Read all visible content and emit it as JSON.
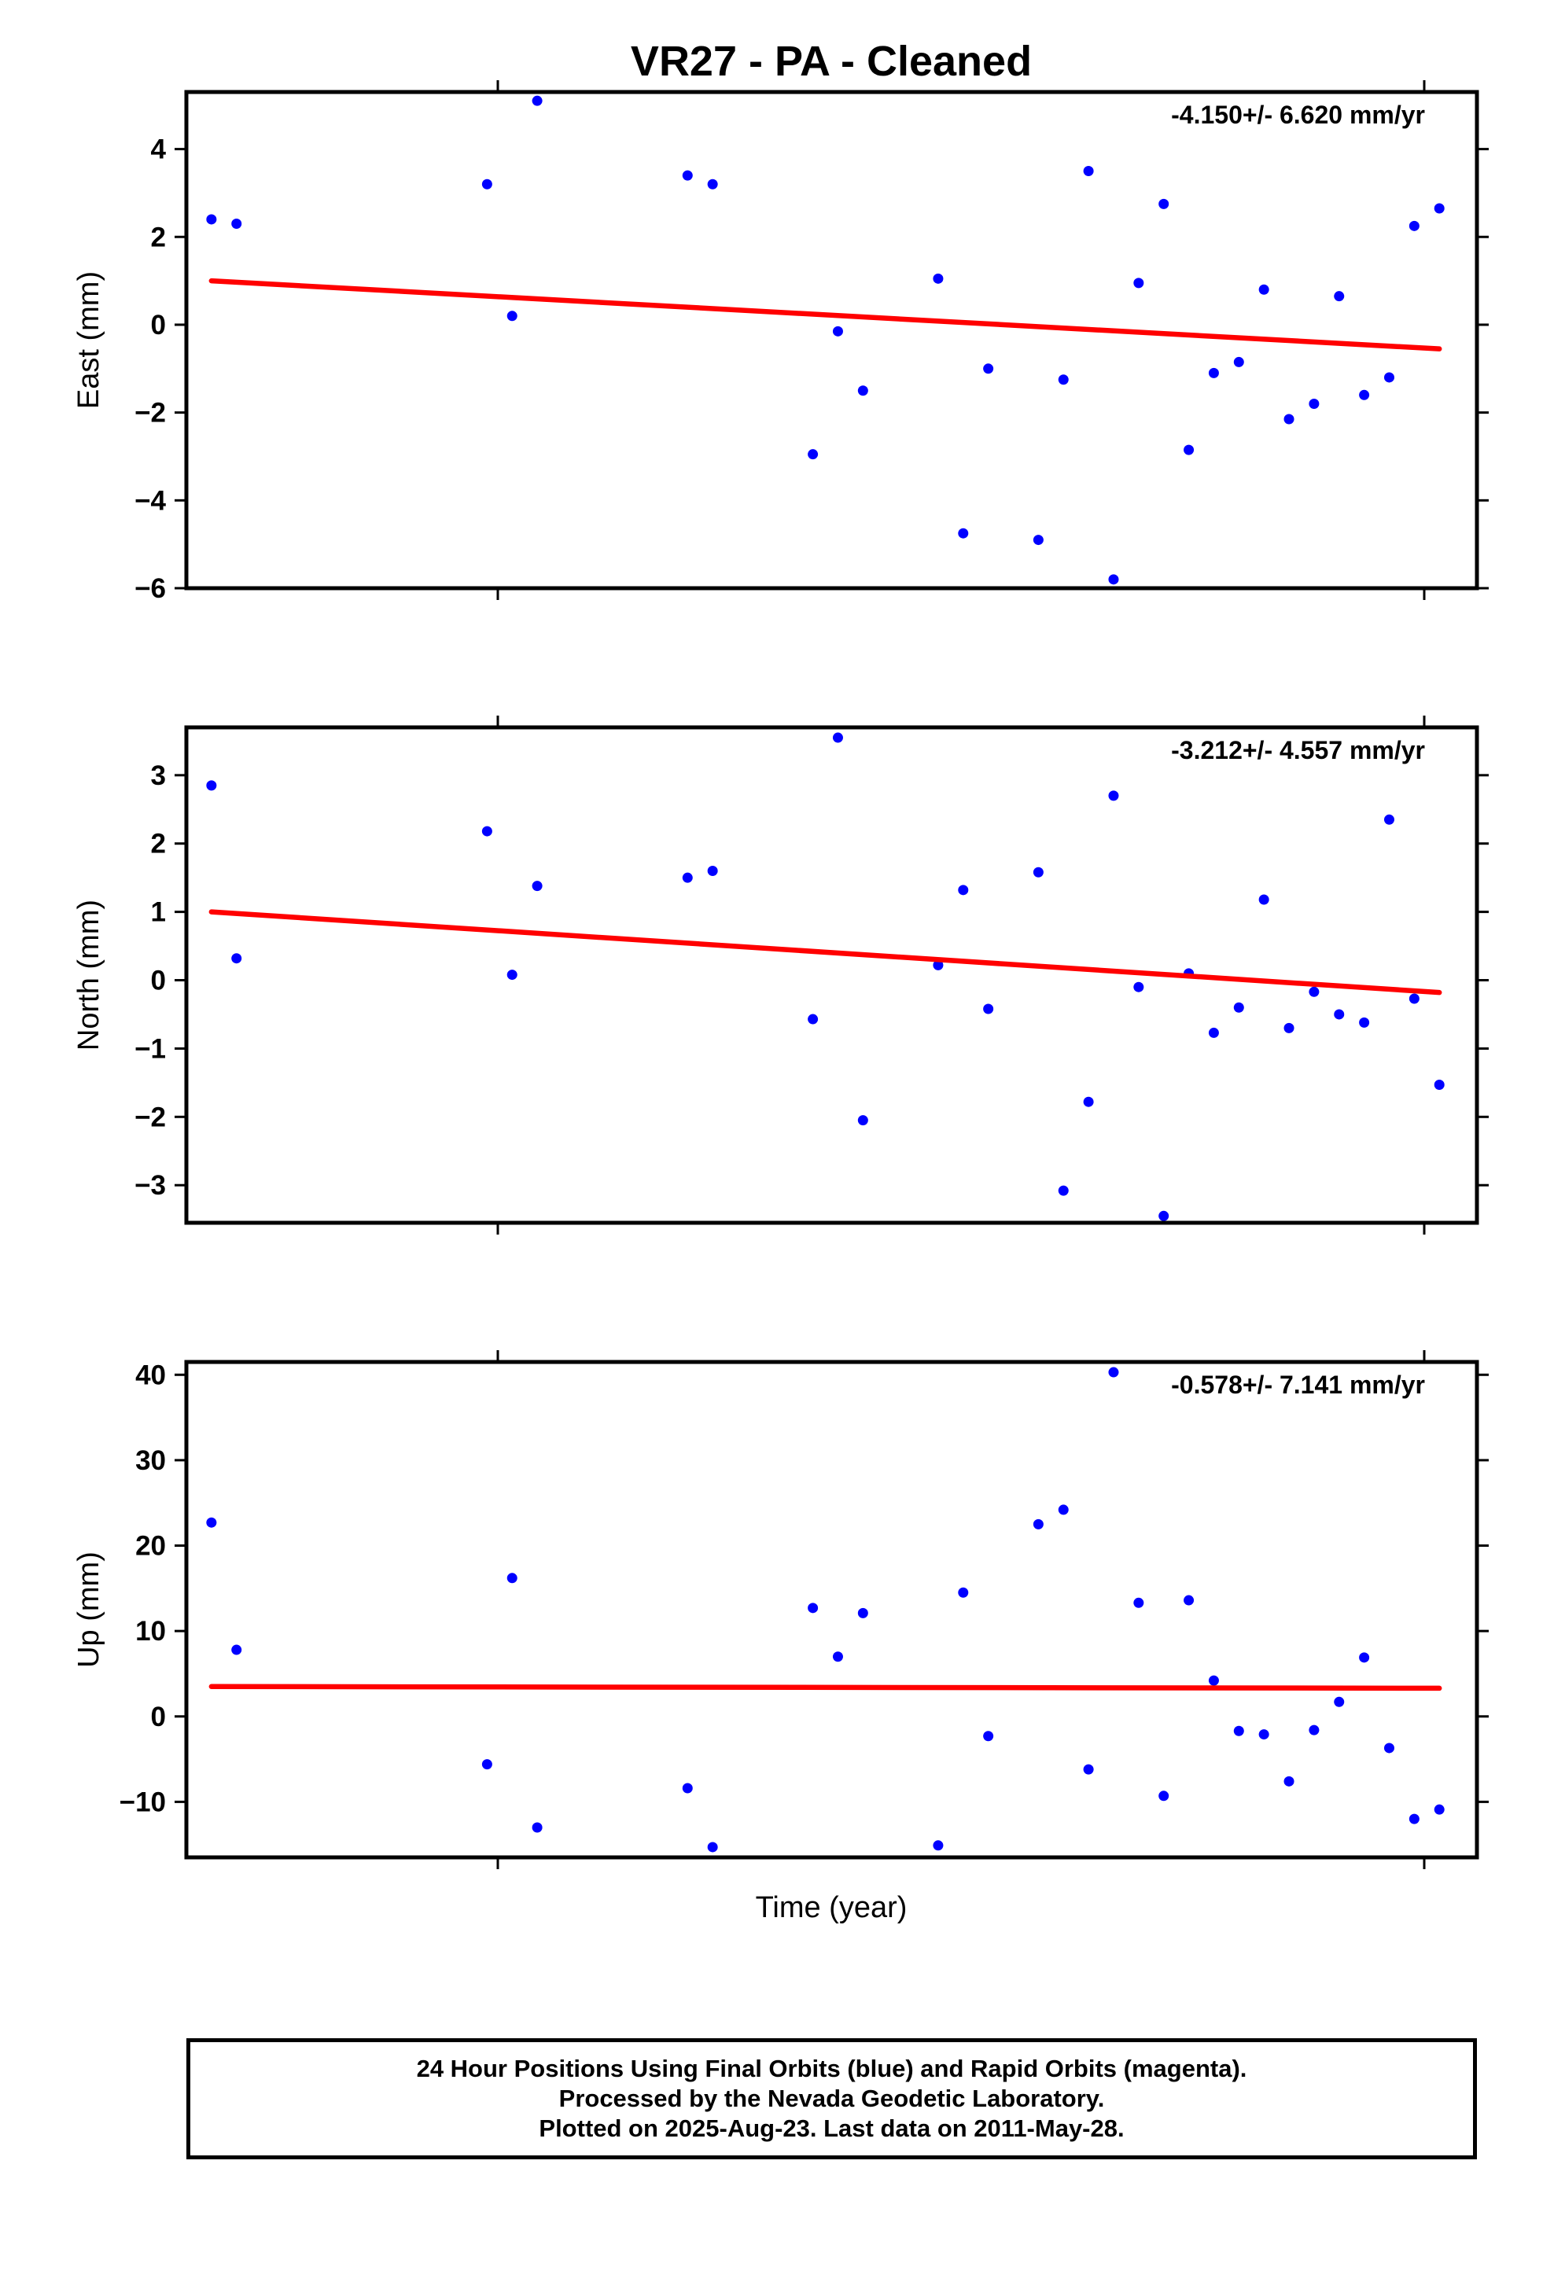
{
  "title": "VR27  - PA - Cleaned",
  "xlabel": "Time (year)",
  "footer": {
    "line1": "24 Hour Positions Using Final Orbits (blue) and Rapid Orbits (magenta).",
    "line2": "Processed by the Nevada Geodetic Laboratory.",
    "line3": "Plotted on 2025-Aug-23. Last data on 2011-May-28."
  },
  "colors": {
    "points": "#0000ff",
    "trend": "#ff0000",
    "frame": "#000000"
  },
  "chart_data": [
    {
      "type": "scatter",
      "ylabel": "East (mm)",
      "rate_label": "-4.150+/- 6.620 mm/yr",
      "ylim": [
        -6,
        5.3
      ],
      "yticks": [
        4,
        2,
        0,
        -2,
        -4,
        -6
      ],
      "ytick_labels": [
        "4",
        "2",
        "0",
        "−2",
        "−4",
        "−6"
      ],
      "x": [
        1,
        2,
        12,
        13,
        14,
        20,
        21,
        25,
        26,
        27,
        30,
        31,
        32,
        34,
        35,
        36,
        37,
        38,
        39,
        40,
        41,
        42,
        43,
        44,
        45,
        46,
        47,
        48,
        49,
        50
      ],
      "y": [
        2.4,
        2.3,
        3.2,
        0.2,
        5.1,
        3.4,
        3.2,
        -2.95,
        -0.15,
        -1.5,
        1.05,
        -4.75,
        -1.0,
        -4.9,
        -1.25,
        3.5,
        -5.8,
        0.95,
        2.75,
        -2.85,
        -1.1,
        -0.85,
        0.8,
        -2.15,
        -1.8,
        0.65,
        -1.6,
        -1.2,
        2.25,
        2.65
      ],
      "trend": {
        "x": [
          1,
          50
        ],
        "y": [
          1.0,
          -0.55
        ]
      }
    },
    {
      "type": "scatter",
      "ylabel": "North (mm)",
      "rate_label": "-3.212+/- 4.557 mm/yr",
      "ylim": [
        -3.55,
        3.7
      ],
      "yticks": [
        3,
        2,
        1,
        0,
        -1,
        -2,
        -3
      ],
      "ytick_labels": [
        "3",
        "2",
        "1",
        "0",
        "−1",
        "−2",
        "−3"
      ],
      "x": [
        1,
        2,
        12,
        13,
        14,
        20,
        21,
        25,
        26,
        27,
        30,
        31,
        32,
        34,
        35,
        36,
        37,
        38,
        39,
        40,
        41,
        42,
        43,
        44,
        45,
        46,
        47,
        48,
        49,
        50
      ],
      "y": [
        2.85,
        0.32,
        2.18,
        0.08,
        1.38,
        1.5,
        1.6,
        -0.57,
        3.55,
        -2.05,
        0.22,
        1.32,
        -0.42,
        1.58,
        -3.08,
        -1.78,
        2.7,
        -0.1,
        -3.45,
        0.1,
        -0.77,
        -0.4,
        1.18,
        -0.7,
        -0.17,
        -0.5,
        -0.62,
        2.35,
        -0.27,
        -1.53
      ],
      "trend": {
        "x": [
          1,
          50
        ],
        "y": [
          1.0,
          -0.18
        ]
      }
    },
    {
      "type": "scatter",
      "ylabel": "Up (mm)",
      "rate_label": "-0.578+/- 7.141 mm/yr",
      "ylim": [
        -16.5,
        41.5
      ],
      "yticks": [
        40,
        30,
        20,
        10,
        0,
        -10
      ],
      "ytick_labels": [
        "40",
        "30",
        "20",
        "10",
        "0",
        "−10"
      ],
      "x": [
        1,
        2,
        12,
        13,
        14,
        20,
        21,
        25,
        26,
        27,
        30,
        31,
        32,
        34,
        35,
        36,
        37,
        38,
        39,
        40,
        41,
        42,
        43,
        44,
        45,
        46,
        47,
        48,
        49,
        50
      ],
      "y": [
        22.7,
        7.8,
        -5.6,
        16.2,
        -13.0,
        -8.4,
        -15.3,
        12.7,
        7.0,
        12.1,
        -15.1,
        14.5,
        -2.3,
        22.5,
        24.2,
        -6.2,
        40.3,
        13.3,
        -9.3,
        13.6,
        4.2,
        -1.7,
        -2.1,
        -7.6,
        -1.6,
        1.7,
        6.9,
        -3.7,
        -12.0,
        -10.9
      ],
      "trend": {
        "x": [
          1,
          50
        ],
        "y": [
          3.5,
          3.3
        ]
      }
    }
  ]
}
